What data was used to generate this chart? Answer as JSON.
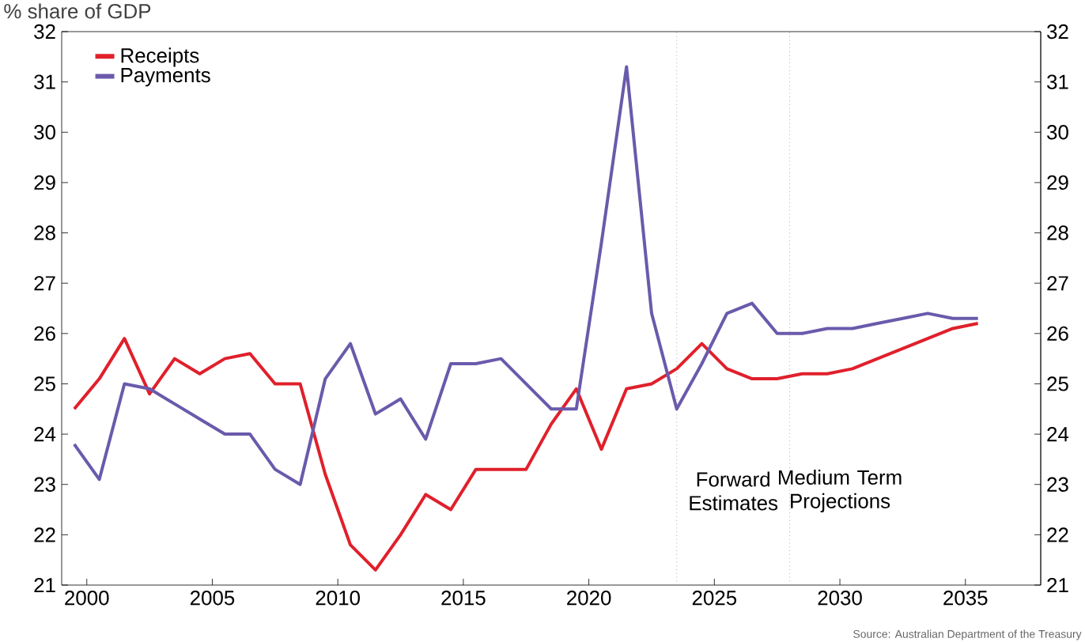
{
  "chart_data": {
    "type": "line",
    "title": "% share of GDP",
    "x": [
      1999.5,
      2000.5,
      2001.5,
      2002.5,
      2003.5,
      2004.5,
      2005.5,
      2006.5,
      2007.5,
      2008.5,
      2009.5,
      2010.5,
      2011.5,
      2012.5,
      2013.5,
      2014.5,
      2015.5,
      2016.5,
      2017.5,
      2018.5,
      2019.5,
      2020.5,
      2021.5,
      2022.5,
      2023.5,
      2024.5,
      2025.5,
      2026.5,
      2027.5,
      2028.5,
      2029.5,
      2030.5,
      2031.5,
      2032.5,
      2033.5,
      2034.5,
      2035.5
    ],
    "series": [
      {
        "name": "Receipts",
        "color": "#e0202b",
        "values": [
          24.5,
          25.1,
          25.9,
          24.8,
          25.5,
          25.2,
          25.5,
          25.6,
          25.0,
          25.0,
          23.2,
          21.8,
          21.3,
          22.0,
          22.8,
          22.5,
          23.3,
          23.3,
          23.3,
          24.2,
          24.9,
          23.7,
          24.9,
          25.0,
          25.3,
          25.8,
          25.3,
          25.1,
          25.1,
          25.2,
          25.2,
          25.3,
          25.5,
          25.7,
          25.9,
          26.1,
          26.2
        ]
      },
      {
        "name": "Payments",
        "color": "#6a5aab",
        "values": [
          23.8,
          23.1,
          25.0,
          24.9,
          24.6,
          24.3,
          24.0,
          24.0,
          23.3,
          23.0,
          25.1,
          25.8,
          24.4,
          24.7,
          23.9,
          25.4,
          25.4,
          25.5,
          25.0,
          24.5,
          24.5,
          27.8,
          31.3,
          26.4,
          24.5,
          25.4,
          26.4,
          26.6,
          26.0,
          26.0,
          26.1,
          26.1,
          26.2,
          26.3,
          26.4,
          26.3,
          26.3
        ]
      }
    ],
    "xlim": [
      1999,
      2038
    ],
    "xticks": [
      2000,
      2005,
      2010,
      2015,
      2020,
      2025,
      2030,
      2035
    ],
    "ylim": [
      21,
      32
    ],
    "yticks": [
      21,
      22,
      23,
      24,
      25,
      26,
      27,
      28,
      29,
      30,
      31,
      32
    ],
    "y2lim": [
      21,
      32
    ],
    "y2ticks": [
      21,
      22,
      23,
      24,
      25,
      26,
      27,
      28,
      29,
      30,
      31,
      32
    ],
    "legend": "top left",
    "grid": false,
    "marker": "none",
    "line_style": "solid",
    "ref_lines": [
      {
        "axis": "x",
        "value": 2023.5,
        "color": "#808080",
        "line_style": "dotted"
      },
      {
        "axis": "x",
        "value": 2028,
        "color": "#808080",
        "line_style": "dotted"
      }
    ],
    "annotations": [
      "Forward Estimates",
      "Medium Term Projections",
      "Source: Australian Department of the Treasury"
    ]
  }
}
